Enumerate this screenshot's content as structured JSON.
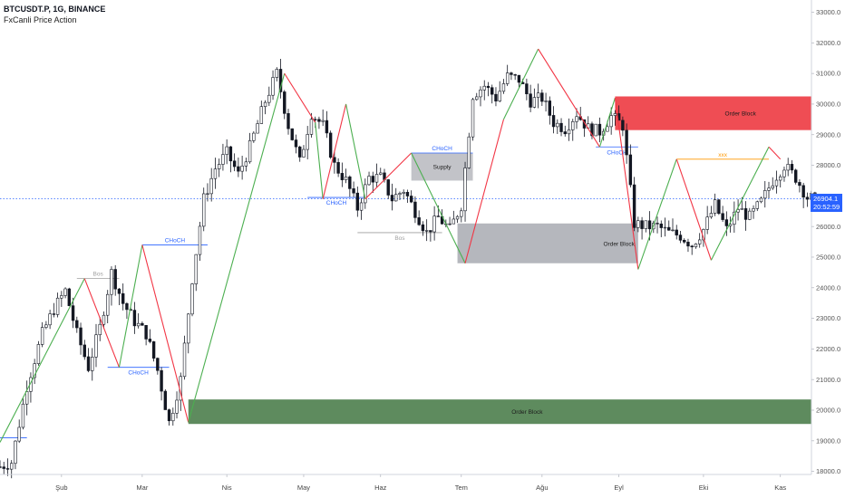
{
  "header": {
    "symbol_line": "BTCUSDT.P, 1G, BINANCE",
    "indicator": "FxCanli Price Action"
  },
  "price_tag": {
    "price": "26904.1",
    "countdown": "20:52:59"
  },
  "colors": {
    "bull_candle": "#131722",
    "up_leg": "#4caf50",
    "down_leg": "#f23645",
    "choch": "#2962ff",
    "bos": "#9e9e9e",
    "xxx": "#ff9800",
    "supply_zone": "rgba(120,123,134,0.45)",
    "order_block_red": "#ef4d54",
    "order_block_green": "#5e8b5e",
    "order_block_gray": "rgba(120,123,134,0.55)",
    "last_price_line": "#2962ff"
  },
  "chart_data": {
    "type": "candlestick",
    "y_axis": {
      "ylim": [
        17900,
        33400
      ],
      "ticks": [
        18000,
        19000,
        20000,
        21000,
        22000,
        23000,
        24000,
        25000,
        26000,
        27000,
        28000,
        29000,
        30000,
        31000,
        32000,
        33000
      ],
      "tick_labels": [
        "18000.0",
        "19000.0",
        "20000.0",
        "21000.0",
        "22000.0",
        "23000.0",
        "24000.0",
        "25000.0",
        "26000.0",
        "27000.0",
        "28000.0",
        "29000.0",
        "30000.0",
        "31000.0",
        "32000.0",
        "33000.0"
      ]
    },
    "x_axis": {
      "labels": [
        "Şub",
        "Mar",
        "Nis",
        "May",
        "Haz",
        "Tem",
        "Ağu",
        "Eyl",
        "Eki",
        "Kas"
      ]
    },
    "last_price": 26904.1,
    "price_path": [
      [
        0,
        18150
      ],
      [
        3,
        18300
      ],
      [
        7,
        20800
      ],
      [
        11,
        22500
      ],
      [
        14,
        23300
      ],
      [
        17,
        23900
      ],
      [
        20,
        22500
      ],
      [
        23,
        21400
      ],
      [
        26,
        22700
      ],
      [
        29,
        24500
      ],
      [
        32,
        23500
      ],
      [
        35,
        22900
      ],
      [
        38,
        22500
      ],
      [
        41,
        21300
      ],
      [
        44,
        19600
      ],
      [
        47,
        21000
      ],
      [
        50,
        24300
      ],
      [
        53,
        26900
      ],
      [
        56,
        27900
      ],
      [
        59,
        28400
      ],
      [
        62,
        27700
      ],
      [
        65,
        28600
      ],
      [
        69,
        30100
      ],
      [
        72,
        31000
      ],
      [
        75,
        29300
      ],
      [
        78,
        28100
      ],
      [
        81,
        29700
      ],
      [
        84,
        29300
      ],
      [
        87,
        28000
      ],
      [
        90,
        27500
      ],
      [
        93,
        26600
      ],
      [
        96,
        27600
      ],
      [
        99,
        27600
      ],
      [
        102,
        26900
      ],
      [
        105,
        27200
      ],
      [
        108,
        26500
      ],
      [
        111,
        25800
      ],
      [
        114,
        26300
      ],
      [
        117,
        25900
      ],
      [
        120,
        26700
      ],
      [
        123,
        30300
      ],
      [
        126,
        30600
      ],
      [
        129,
        30200
      ],
      [
        132,
        30900
      ],
      [
        135,
        30800
      ],
      [
        138,
        30100
      ],
      [
        141,
        30200
      ],
      [
        144,
        29400
      ],
      [
        147,
        29200
      ],
      [
        150,
        29700
      ],
      [
        153,
        29200
      ],
      [
        156,
        29100
      ],
      [
        159,
        29600
      ],
      [
        162,
        29300
      ],
      [
        165,
        26100
      ],
      [
        168,
        26000
      ],
      [
        171,
        26000
      ],
      [
        174,
        25800
      ],
      [
        177,
        25700
      ],
      [
        180,
        25400
      ],
      [
        183,
        25900
      ],
      [
        186,
        26700
      ],
      [
        189,
        25900
      ],
      [
        192,
        26600
      ],
      [
        195,
        26300
      ],
      [
        198,
        26800
      ],
      [
        201,
        27500
      ],
      [
        204,
        28000
      ],
      [
        207,
        27600
      ],
      [
        210,
        26950
      ],
      [
        212,
        26904
      ]
    ],
    "zigzag": [
      [
        0,
        18950,
        "up"
      ],
      [
        22,
        24300,
        "down"
      ],
      [
        31,
        21400,
        "up"
      ],
      [
        37,
        25400,
        "down"
      ],
      [
        49,
        19600,
        "up"
      ],
      [
        74,
        31000,
        "down"
      ],
      [
        82,
        29400,
        "up"
      ],
      [
        84,
        26900,
        "down"
      ],
      [
        90,
        30000,
        "up"
      ],
      [
        95,
        26900,
        "down"
      ],
      [
        107,
        28400,
        "up"
      ],
      [
        121,
        24800,
        "down"
      ],
      [
        131,
        29500,
        "up"
      ],
      [
        140,
        31800,
        "down"
      ],
      [
        156,
        28600,
        "up"
      ],
      [
        160,
        30200,
        "down"
      ],
      [
        166,
        24600,
        "up"
      ],
      [
        176,
        28200,
        "down"
      ],
      [
        185,
        24900,
        "up"
      ],
      [
        200,
        28600,
        "down"
      ],
      [
        203,
        28200,
        null
      ]
    ],
    "zones": [
      {
        "label": "Order Block",
        "color": "order_block_red",
        "x0": 160,
        "x1": 232,
        "y0": 30250,
        "y1": 29150
      },
      {
        "label": "Order Block",
        "color": "order_block_green",
        "x0": 49,
        "x1": 232,
        "y0": 20350,
        "y1": 19550
      },
      {
        "label": "Order Block",
        "color": "order_block_gray",
        "x0": 119,
        "x1": 166,
        "y0": 26100,
        "y1": 24800
      },
      {
        "label": "Supply",
        "color": "supply_zone",
        "x0": 107,
        "x1": 123,
        "y0": 28400,
        "y1": 27500
      }
    ],
    "levels": [
      {
        "label": "CHoCH",
        "color": "choch",
        "price": 25400,
        "x0": 37,
        "x1": 54,
        "label_at": 1
      },
      {
        "label": "CHoCH",
        "color": "choch",
        "price": 21400,
        "x0": 28,
        "x1": 44,
        "label_at": 0
      },
      {
        "label": "CHoCH",
        "color": "choch",
        "price": 26950,
        "x0": 80,
        "x1": 95,
        "label_at": 0
      },
      {
        "label": "CHoCH",
        "color": "choch",
        "price": 28400,
        "x0": 107,
        "x1": 123,
        "label_at": 1
      },
      {
        "label": "CHoCH",
        "color": "choch",
        "price": 28600,
        "x0": 155,
        "x1": 166,
        "label_at": 0
      },
      {
        "label": "Bos",
        "color": "bos",
        "price": 24300,
        "x0": 20,
        "x1": 31,
        "label_at": 1
      },
      {
        "label": "Bos",
        "color": "bos",
        "price": 25800,
        "x0": 93,
        "x1": 115,
        "label_at": 0
      },
      {
        "label": "xxx",
        "color": "xxx",
        "price": 28200,
        "x0": 176,
        "x1": 200,
        "label_at": 1
      },
      {
        "label": "",
        "color": "choch",
        "price": 19100,
        "x0": 0,
        "x1": 7,
        "label_at": 0
      }
    ]
  }
}
